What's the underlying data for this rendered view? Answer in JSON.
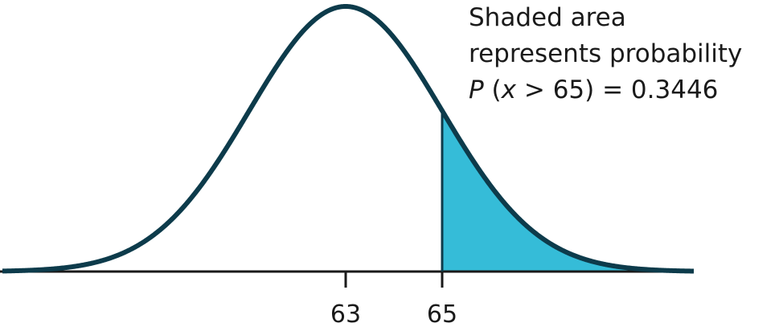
{
  "chart_data": {
    "type": "area",
    "distribution": "normal",
    "mean": 63,
    "sd": 5,
    "ticks": [
      {
        "value": 63,
        "label": "63"
      },
      {
        "value": 65,
        "label": "65"
      }
    ],
    "shaded_region": {
      "from": 65,
      "to": "right-tail"
    },
    "annotation": {
      "line1": "Shaded area",
      "line2": "represents probability",
      "prob_var": "P",
      "prob_open": " (",
      "prob_x": "x",
      "prob_rest": " > 65) = 0.3446",
      "probability": 0.3446
    },
    "grid": false,
    "legend": "none",
    "colors": {
      "curve": "#0d3b4b",
      "fill": "#35bcd8",
      "axis": "#1a1a1a"
    }
  }
}
